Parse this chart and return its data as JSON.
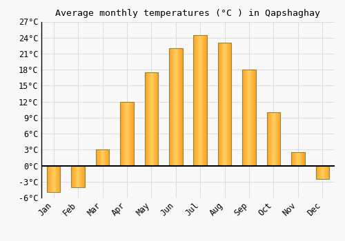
{
  "title": "Average monthly temperatures (°C ) in Qapshaghay",
  "months": [
    "Jan",
    "Feb",
    "Mar",
    "Apr",
    "May",
    "Jun",
    "Jul",
    "Aug",
    "Sep",
    "Oct",
    "Nov",
    "Dec"
  ],
  "values": [
    -5.0,
    -4.0,
    3.0,
    12.0,
    17.5,
    22.0,
    24.5,
    23.0,
    18.0,
    10.0,
    2.5,
    -2.5
  ],
  "bar_color_light": "#FFD060",
  "bar_color_dark": "#FFA020",
  "bar_edge_color": "#888844",
  "ylim": [
    -6,
    27
  ],
  "yticks": [
    -6,
    -3,
    0,
    3,
    6,
    9,
    12,
    15,
    18,
    21,
    24,
    27
  ],
  "ytick_labels": [
    "-6°C",
    "-3°C",
    "0°C",
    "3°C",
    "6°C",
    "9°C",
    "12°C",
    "15°C",
    "18°C",
    "21°C",
    "24°C",
    "27°C"
  ],
  "background_color": "#f8f8f8",
  "grid_color": "#dddddd",
  "title_fontsize": 9.5,
  "tick_fontsize": 8.5,
  "bar_width": 0.55
}
